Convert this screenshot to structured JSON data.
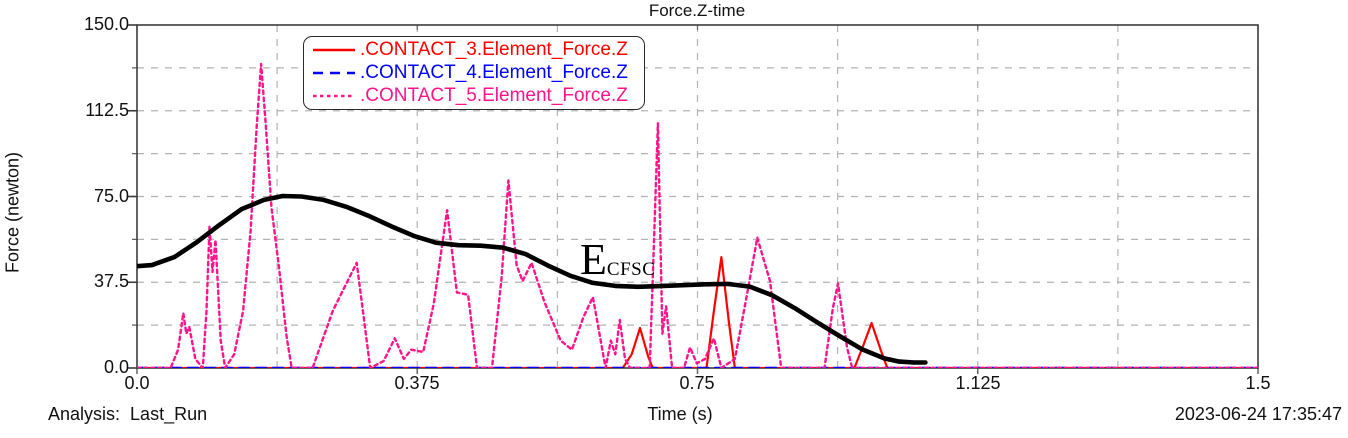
{
  "header": {
    "title": "Force.Z-time"
  },
  "footer": {
    "analysis_label": "Analysis:",
    "analysis_value": "Last_Run",
    "xlabel": "Time (s)",
    "timestamp": "2023-06-24 17:35:47"
  },
  "annotation": {
    "main": "E",
    "sub": "CFSC"
  },
  "legend": {
    "items": [
      {
        "label": ".CONTACT_3.Element_Force.Z",
        "color": "#ff0000",
        "style": "solid"
      },
      {
        "label": ".CONTACT_4.Element_Force.Z",
        "color": "#0000ff",
        "style": "dashed"
      },
      {
        "label": ".CONTACT_5.Element_Force.Z",
        "color": "#ff148c",
        "style": "dotted"
      }
    ]
  },
  "colors": {
    "contact3": "#ff0000",
    "contact4": "#0000ff",
    "contact5": "#ff148c",
    "envelope": "#000000",
    "grid": "#b3b3b3",
    "frame": "#3c3c3c",
    "tick": "#666666",
    "text": "#111111"
  },
  "chart_data": {
    "type": "line",
    "title": "Force.Z-time",
    "xlabel": "Time (s)",
    "ylabel": "Force (newton)",
    "xlim": [
      0,
      1.5
    ],
    "ylim": [
      0,
      150
    ],
    "grid": true,
    "legend_position": "top-left-inside",
    "x_tick_values": [
      0,
      0.375,
      0.75,
      1.125,
      1.5
    ],
    "x_tick_labels": [
      "0.0",
      "0.375",
      "0.75",
      "1.125",
      "1.5"
    ],
    "y_tick_values": [
      0,
      37.5,
      75.0,
      112.5,
      150.0
    ],
    "y_tick_labels": [
      "0.0",
      "37.5",
      "75.0",
      "112.5",
      "150.0"
    ],
    "x_minor_step": 0.1875,
    "y_minor_step": 18.75,
    "series": [
      {
        "name": ".CONTACT_3.Element_Force.Z",
        "color": "#ff0000",
        "style": "solid",
        "width": 2.2,
        "points": [
          [
            0,
            0
          ],
          [
            0.65,
            0
          ],
          [
            0.662,
            6
          ],
          [
            0.673,
            17.5
          ],
          [
            0.684,
            5
          ],
          [
            0.69,
            0
          ],
          [
            0.762,
            0
          ],
          [
            0.772,
            25
          ],
          [
            0.782,
            48.5
          ],
          [
            0.792,
            20
          ],
          [
            0.8,
            0
          ],
          [
            0.96,
            0
          ],
          [
            0.972,
            10
          ],
          [
            0.983,
            19.7
          ],
          [
            0.995,
            8
          ],
          [
            1.004,
            0
          ],
          [
            1.5,
            0
          ]
        ]
      },
      {
        "name": ".CONTACT_4.Element_Force.Z",
        "color": "#0000ff",
        "style": "dashed",
        "width": 2.6,
        "points": [
          [
            0,
            0
          ],
          [
            1.5,
            0
          ]
        ]
      },
      {
        "name": ".CONTACT_5.Element_Force.Z",
        "color": "#ff148c",
        "style": "dotted",
        "width": 2.4,
        "points": [
          [
            0,
            0
          ],
          [
            0.045,
            0
          ],
          [
            0.055,
            8
          ],
          [
            0.062,
            24
          ],
          [
            0.066,
            15
          ],
          [
            0.07,
            18
          ],
          [
            0.078,
            4
          ],
          [
            0.088,
            0
          ],
          [
            0.093,
            25
          ],
          [
            0.097,
            62
          ],
          [
            0.101,
            42
          ],
          [
            0.105,
            56
          ],
          [
            0.112,
            12
          ],
          [
            0.118,
            0
          ],
          [
            0.13,
            6
          ],
          [
            0.142,
            25
          ],
          [
            0.152,
            60
          ],
          [
            0.16,
            105
          ],
          [
            0.166,
            133
          ],
          [
            0.172,
            108
          ],
          [
            0.18,
            70
          ],
          [
            0.19,
            44
          ],
          [
            0.2,
            14
          ],
          [
            0.207,
            0
          ],
          [
            0.235,
            0
          ],
          [
            0.262,
            25
          ],
          [
            0.294,
            46
          ],
          [
            0.312,
            0
          ],
          [
            0.33,
            3
          ],
          [
            0.345,
            13
          ],
          [
            0.357,
            4
          ],
          [
            0.367,
            8
          ],
          [
            0.383,
            7
          ],
          [
            0.397,
            28
          ],
          [
            0.415,
            69
          ],
          [
            0.428,
            33
          ],
          [
            0.443,
            32
          ],
          [
            0.455,
            0
          ],
          [
            0.475,
            0
          ],
          [
            0.488,
            40
          ],
          [
            0.497,
            82
          ],
          [
            0.508,
            45
          ],
          [
            0.516,
            38
          ],
          [
            0.528,
            46
          ],
          [
            0.545,
            29
          ],
          [
            0.567,
            12
          ],
          [
            0.582,
            8
          ],
          [
            0.597,
            22
          ],
          [
            0.61,
            31
          ],
          [
            0.627,
            0
          ],
          [
            0.634,
            12
          ],
          [
            0.64,
            6
          ],
          [
            0.646,
            21
          ],
          [
            0.653,
            4
          ],
          [
            0.66,
            0
          ],
          [
            0.686,
            0
          ],
          [
            0.692,
            58
          ],
          [
            0.697,
            107
          ],
          [
            0.703,
            15
          ],
          [
            0.708,
            27
          ],
          [
            0.716,
            0
          ],
          [
            0.732,
            0
          ],
          [
            0.74,
            9
          ],
          [
            0.749,
            2
          ],
          [
            0.76,
            4
          ],
          [
            0.772,
            13
          ],
          [
            0.782,
            0
          ],
          [
            0.8,
            4
          ],
          [
            0.815,
            30
          ],
          [
            0.83,
            57
          ],
          [
            0.847,
            38
          ],
          [
            0.862,
            0
          ],
          [
            0.92,
            0
          ],
          [
            0.931,
            26
          ],
          [
            0.938,
            37
          ],
          [
            0.95,
            9
          ],
          [
            0.957,
            0
          ],
          [
            1.5,
            0
          ]
        ]
      },
      {
        "name": "E_CFSC_envelope",
        "color": "#000000",
        "style": "solid",
        "width": 4.6,
        "points": [
          [
            0,
            44.5
          ],
          [
            0.02,
            45
          ],
          [
            0.05,
            48.5
          ],
          [
            0.08,
            55
          ],
          [
            0.11,
            62.5
          ],
          [
            0.14,
            69.5
          ],
          [
            0.17,
            73.5
          ],
          [
            0.195,
            75.2
          ],
          [
            0.22,
            75
          ],
          [
            0.25,
            73.5
          ],
          [
            0.28,
            70.5
          ],
          [
            0.31,
            66.5
          ],
          [
            0.34,
            62
          ],
          [
            0.37,
            57.8
          ],
          [
            0.4,
            54.8
          ],
          [
            0.43,
            53.7
          ],
          [
            0.46,
            53.5
          ],
          [
            0.49,
            52.6
          ],
          [
            0.52,
            49.8
          ],
          [
            0.55,
            44.8
          ],
          [
            0.58,
            40.3
          ],
          [
            0.61,
            37.2
          ],
          [
            0.64,
            35.9
          ],
          [
            0.67,
            35.5
          ],
          [
            0.7,
            35.8
          ],
          [
            0.73,
            36.2
          ],
          [
            0.76,
            36.6
          ],
          [
            0.79,
            36.8
          ],
          [
            0.82,
            35.6
          ],
          [
            0.85,
            31.8
          ],
          [
            0.88,
            26.2
          ],
          [
            0.91,
            20
          ],
          [
            0.94,
            14
          ],
          [
            0.97,
            8.2
          ],
          [
            1.0,
            4.2
          ],
          [
            1.02,
            2.8
          ],
          [
            1.04,
            2.4
          ],
          [
            1.055,
            2.4
          ]
        ]
      }
    ]
  }
}
